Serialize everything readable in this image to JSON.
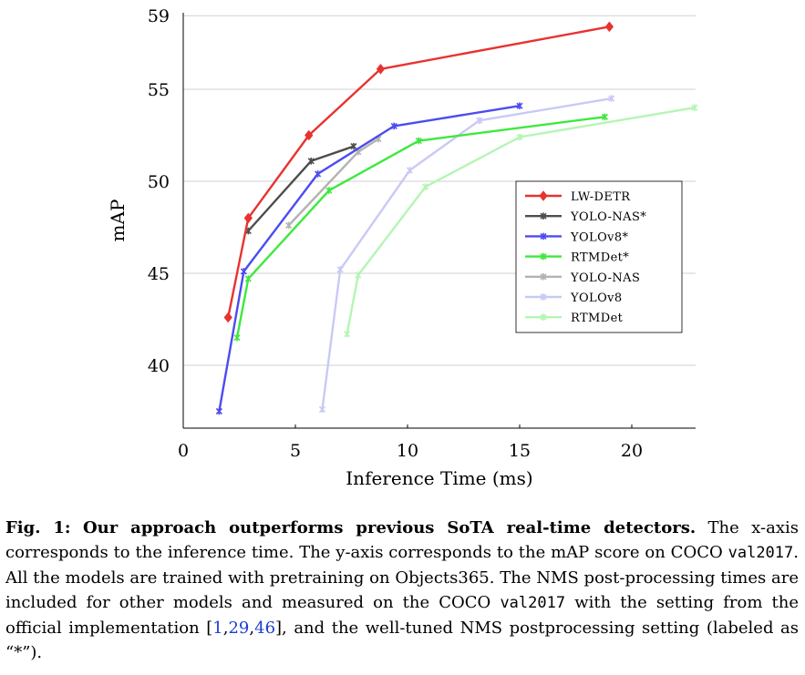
{
  "chart_data": {
    "type": "line",
    "xlabel": "Inference Time (ms)",
    "ylabel": "mAP",
    "xlim": [
      0,
      22.8
    ],
    "ylim": [
      37.5,
      59.2
    ],
    "xticks": [
      0,
      5,
      10,
      15,
      20
    ],
    "yticks": [
      40,
      45,
      50,
      55,
      59
    ],
    "grid": "horizontal",
    "legend_position": "right",
    "series": [
      {
        "name": "LW-DETR",
        "color": "#e8322f",
        "marker": "diamond",
        "x": [
          2.0,
          2.9,
          5.6,
          8.8,
          19.0
        ],
        "y": [
          42.6,
          48.0,
          52.5,
          56.1,
          58.4
        ]
      },
      {
        "name": "YOLO-NAS*",
        "color": "#4d4d4d",
        "marker": "x",
        "x": [
          2.9,
          5.7,
          7.6
        ],
        "y": [
          47.3,
          51.1,
          51.9
        ]
      },
      {
        "name": "YOLOv8*",
        "color": "#4c4cf0",
        "marker": "x",
        "x": [
          1.6,
          2.7,
          6.0,
          9.4,
          15.0
        ],
        "y": [
          37.5,
          45.1,
          50.4,
          53.0,
          54.1
        ]
      },
      {
        "name": "RTMDet*",
        "color": "#3ee83e",
        "marker": "x",
        "x": [
          2.4,
          2.9,
          6.5,
          10.5,
          18.8
        ],
        "y": [
          41.5,
          44.7,
          49.5,
          52.2,
          53.5
        ]
      },
      {
        "name": "YOLO-NAS",
        "color": "#b3b3b3",
        "marker": "x",
        "x": [
          4.7,
          7.8,
          8.7
        ],
        "y": [
          47.6,
          51.6,
          52.3
        ]
      },
      {
        "name": "YOLOv8",
        "color": "#c9c9f7",
        "marker": "x",
        "x": [
          6.2,
          7.0,
          10.1,
          13.2,
          19.1
        ],
        "y": [
          37.6,
          45.2,
          50.6,
          53.3,
          54.5
        ]
      },
      {
        "name": "RTMDet",
        "color": "#b5f5b5",
        "marker": "x",
        "x": [
          7.3,
          7.8,
          10.8,
          15.0,
          22.8
        ],
        "y": [
          41.7,
          44.9,
          49.7,
          52.4,
          54.0
        ]
      }
    ]
  },
  "caption": {
    "label": "Fig. 1:",
    "headline": "Our approach outperforms previous SoTA real-time detectors.",
    "text_1": "The x-axis corresponds to the inference time. The y-axis corresponds to the mAP score on COCO",
    "code_1": "val2017",
    "text_2": ". All the models are trained with pretraining on Objects365. The NMS post-processing times are included for other models and measured on the COCO",
    "code_2": "val2017",
    "text_3": "with the setting from the official implementation [",
    "ref_1": "1",
    "ref_2": "29",
    "ref_3": "46",
    "text_4": "], and the well-tuned NMS postprocessing setting (labeled as “*”)."
  }
}
